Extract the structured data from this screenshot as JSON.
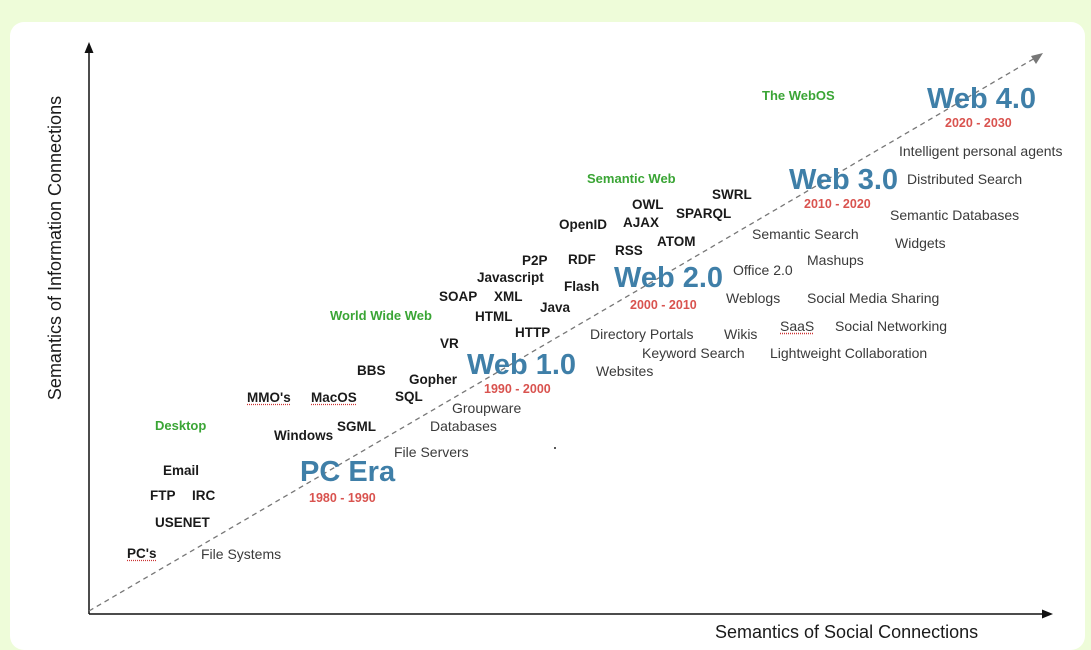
{
  "axes": {
    "y_label": "Semantics of Information Connections",
    "x_label": "Semantics of Social Connections"
  },
  "eras": [
    {
      "name": "PC Era",
      "years": "1980 - 1990",
      "category": "Desktop"
    },
    {
      "name": "Web 1.0",
      "years": "1990 - 2000",
      "category": "World Wide Web"
    },
    {
      "name": "Web 2.0",
      "years": "2000 - 2010",
      "category": "Semantic Web"
    },
    {
      "name": "Web 3.0",
      "years": "2010 - 2020",
      "category": "The WebOS"
    },
    {
      "name": "Web 4.0",
      "years": "2020 - 2030"
    }
  ],
  "technologies": {
    "pc": [
      "Email",
      "FTP",
      "IRC",
      "USENET",
      "PC's"
    ],
    "web1": [
      "MMO's",
      "MacOS",
      "BBS",
      "Gopher",
      "SQL",
      "Windows",
      "SGML",
      "VR"
    ],
    "web2": [
      "SOAP",
      "XML",
      "HTML",
      "Java",
      "HTTP",
      "Javascript",
      "P2P",
      "RDF",
      "Flash"
    ],
    "web3": [
      "OpenID",
      "AJAX",
      "OWL",
      "RSS",
      "ATOM",
      "SPARQL",
      "SWRL"
    ]
  },
  "applications": {
    "pc": [
      "File Systems",
      "File Servers",
      "Databases",
      "Groupware"
    ],
    "web1": [
      "Websites",
      "Directory Portals",
      "Keyword Search",
      "Wikis"
    ],
    "web2": [
      "Office 2.0",
      "Weblogs",
      "Social Media Sharing",
      "SaaS",
      "Social Networking",
      "Lightweight Collaboration",
      "Mashups",
      "Semantic Search"
    ],
    "web3": [
      "Widgets",
      "Semantic Databases",
      "Distributed Search",
      "Intelligent personal agents"
    ]
  }
}
